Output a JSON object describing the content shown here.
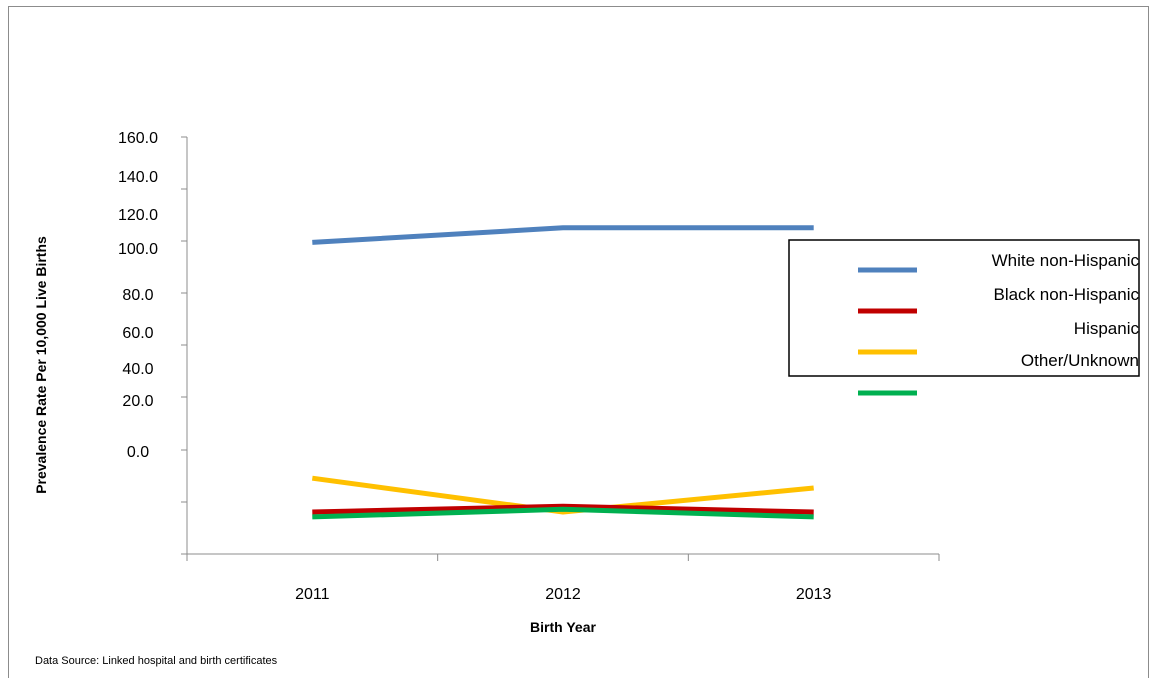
{
  "chart_data": {
    "type": "line",
    "title": "",
    "xlabel": "Birth Year",
    "ylabel": "Prevalence Rate Per 10,000 Live Births",
    "categories": [
      "2011",
      "2012",
      "2013"
    ],
    "ylim": [
      0,
      160
    ],
    "yticks": [
      "160.0",
      "140.0",
      "120.0",
      "100.0",
      "80.0",
      "60.0",
      "40.0",
      "20.0",
      "0.0"
    ],
    "grid": false,
    "legend_position": "right",
    "series": [
      {
        "name": "White non-Hispanic",
        "color": "#4f81bd",
        "values": [
          127.5,
          133.5,
          133.5
        ]
      },
      {
        "name": "Black non-Hispanic",
        "color": "#c00000",
        "values": [
          17.2,
          19.5,
          17.2
        ]
      },
      {
        "name": "Hispanic",
        "color": "#ffc000",
        "values": [
          31.0,
          17.2,
          27.0
        ]
      },
      {
        "name": "Other/Unknown",
        "color": "#00b050",
        "values": [
          15.2,
          18.3,
          15.2
        ]
      }
    ],
    "note": "Data Source: Linked hospital and birth certificates"
  }
}
